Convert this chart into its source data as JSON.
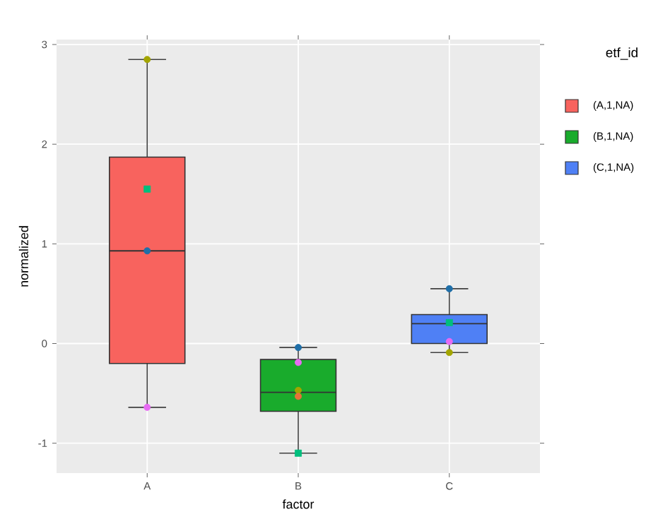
{
  "chart_data": {
    "type": "box",
    "xlabel": "factor",
    "ylabel": "normalized",
    "legend_title": "etf_id",
    "categories": [
      "A",
      "B",
      "C"
    ],
    "ylim": [
      -1.3,
      3.05
    ],
    "yticks": [
      -1,
      0,
      1,
      2,
      3
    ],
    "grid": true,
    "legend": "right",
    "series": [
      {
        "name": "(A,1,NA)",
        "color": "#f8635e",
        "boxes": [
          {
            "low": -0.64,
            "q1": -0.2,
            "median": 0.93,
            "q3": 1.87,
            "high": 2.85
          },
          null,
          null
        ]
      },
      {
        "name": "(B,1,NA)",
        "color": "#19ab2c",
        "boxes": [
          null,
          {
            "low": -1.1,
            "q1": -0.68,
            "median": -0.49,
            "q3": -0.16,
            "high": -0.04
          },
          null
        ]
      },
      {
        "name": "(C,1,NA)",
        "color": "#4f80f5",
        "boxes": [
          null,
          null,
          {
            "low": -0.09,
            "q1": 0.0,
            "median": 0.2,
            "q3": 0.29,
            "high": 0.55
          }
        ]
      },
      {
        "type": "scatter",
        "color": "#a3a500",
        "marker": "circle",
        "x": [
          "A",
          "B",
          "C"
        ],
        "values": [
          2.85,
          -0.47,
          -0.09
        ]
      },
      {
        "type": "scatter",
        "color": "#00bf7d",
        "marker": "square",
        "x": [
          "A",
          "B",
          "C"
        ],
        "values": [
          1.55,
          -1.1,
          0.21
        ]
      },
      {
        "type": "scatter",
        "color": "#1f6fa8",
        "marker": "circle",
        "x": [
          "A",
          "B",
          "C"
        ],
        "values": [
          0.93,
          -0.04,
          0.55
        ]
      },
      {
        "type": "scatter",
        "color": "#e76bf3",
        "marker": "circle",
        "x": [
          "A",
          "B",
          "C"
        ],
        "values": [
          -0.64,
          -0.19,
          0.02
        ]
      },
      {
        "type": "scatter",
        "color": "#e8703a",
        "marker": "circle",
        "x": [
          "B"
        ],
        "values": [
          -0.53
        ]
      }
    ]
  }
}
